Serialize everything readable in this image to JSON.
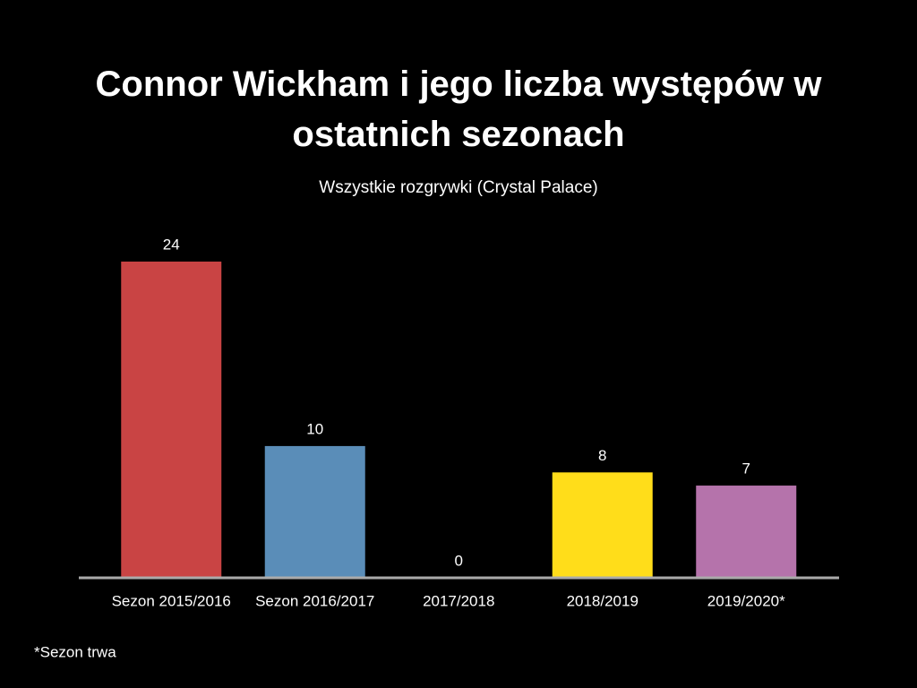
{
  "chart_data": {
    "type": "bar",
    "title": "Connor Wickham i jego liczba występów w ostatnich sezonach",
    "subtitle": "Wszystkie rozgrywki (Crystal Palace)",
    "categories": [
      "Sezon 2015/2016",
      "Sezon 2016/2017",
      "2017/2018",
      "2018/2019",
      "2019/2020*"
    ],
    "values": [
      24,
      10,
      0,
      8,
      7
    ],
    "colors": [
      "#c94444",
      "#5a8db8",
      "#888888",
      "#ffdd1a",
      "#b573ab"
    ],
    "note": "*Sezon trwa"
  }
}
